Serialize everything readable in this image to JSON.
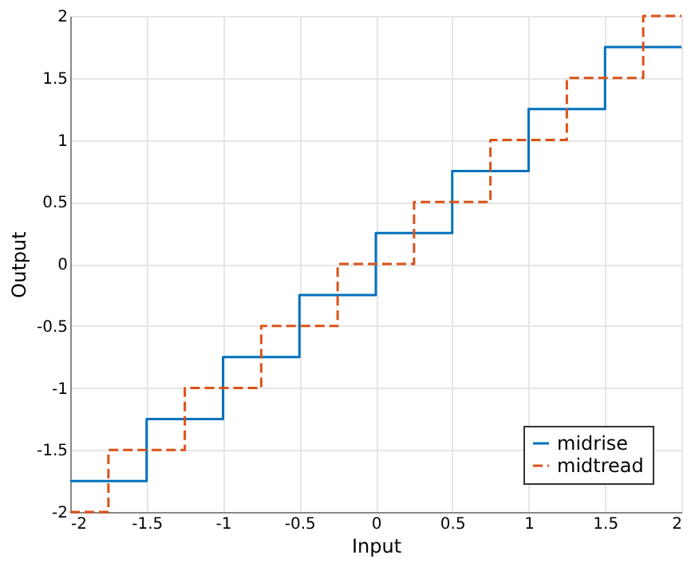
{
  "chart_data": {
    "type": "step",
    "xlabel": "Input",
    "ylabel": "Output",
    "series": [
      {
        "name": "midrise",
        "color": "#0072bd",
        "line_style": "solid",
        "x": [
          -2,
          -1.5,
          -1,
          -0.5,
          0,
          0.5,
          1,
          1.5,
          2
        ],
        "values": [
          -1.75,
          -1.25,
          -0.75,
          -0.25,
          0.25,
          0.75,
          1.25,
          1.75,
          1.75
        ]
      },
      {
        "name": "midtread",
        "color": "#d95319",
        "line_style": "dashed",
        "x": [
          -2,
          -1.75,
          -1.25,
          -0.75,
          -0.25,
          0.25,
          0.75,
          1.25,
          1.75,
          2
        ],
        "values": [
          -2,
          -1.5,
          -1,
          -0.5,
          0,
          0.5,
          1,
          1.5,
          2,
          2
        ]
      }
    ],
    "xlim": [
      -2,
      2
    ],
    "xticks": [
      -2,
      -1.5,
      -1,
      -0.5,
      0,
      0.5,
      1,
      1.5,
      2
    ],
    "ylim": [
      -2,
      2
    ],
    "yticks": [
      -2,
      -1.5,
      -1,
      -0.5,
      0,
      0.5,
      1,
      1.5,
      2
    ],
    "grid": true,
    "legend": "bottom right",
    "marker": "none"
  }
}
